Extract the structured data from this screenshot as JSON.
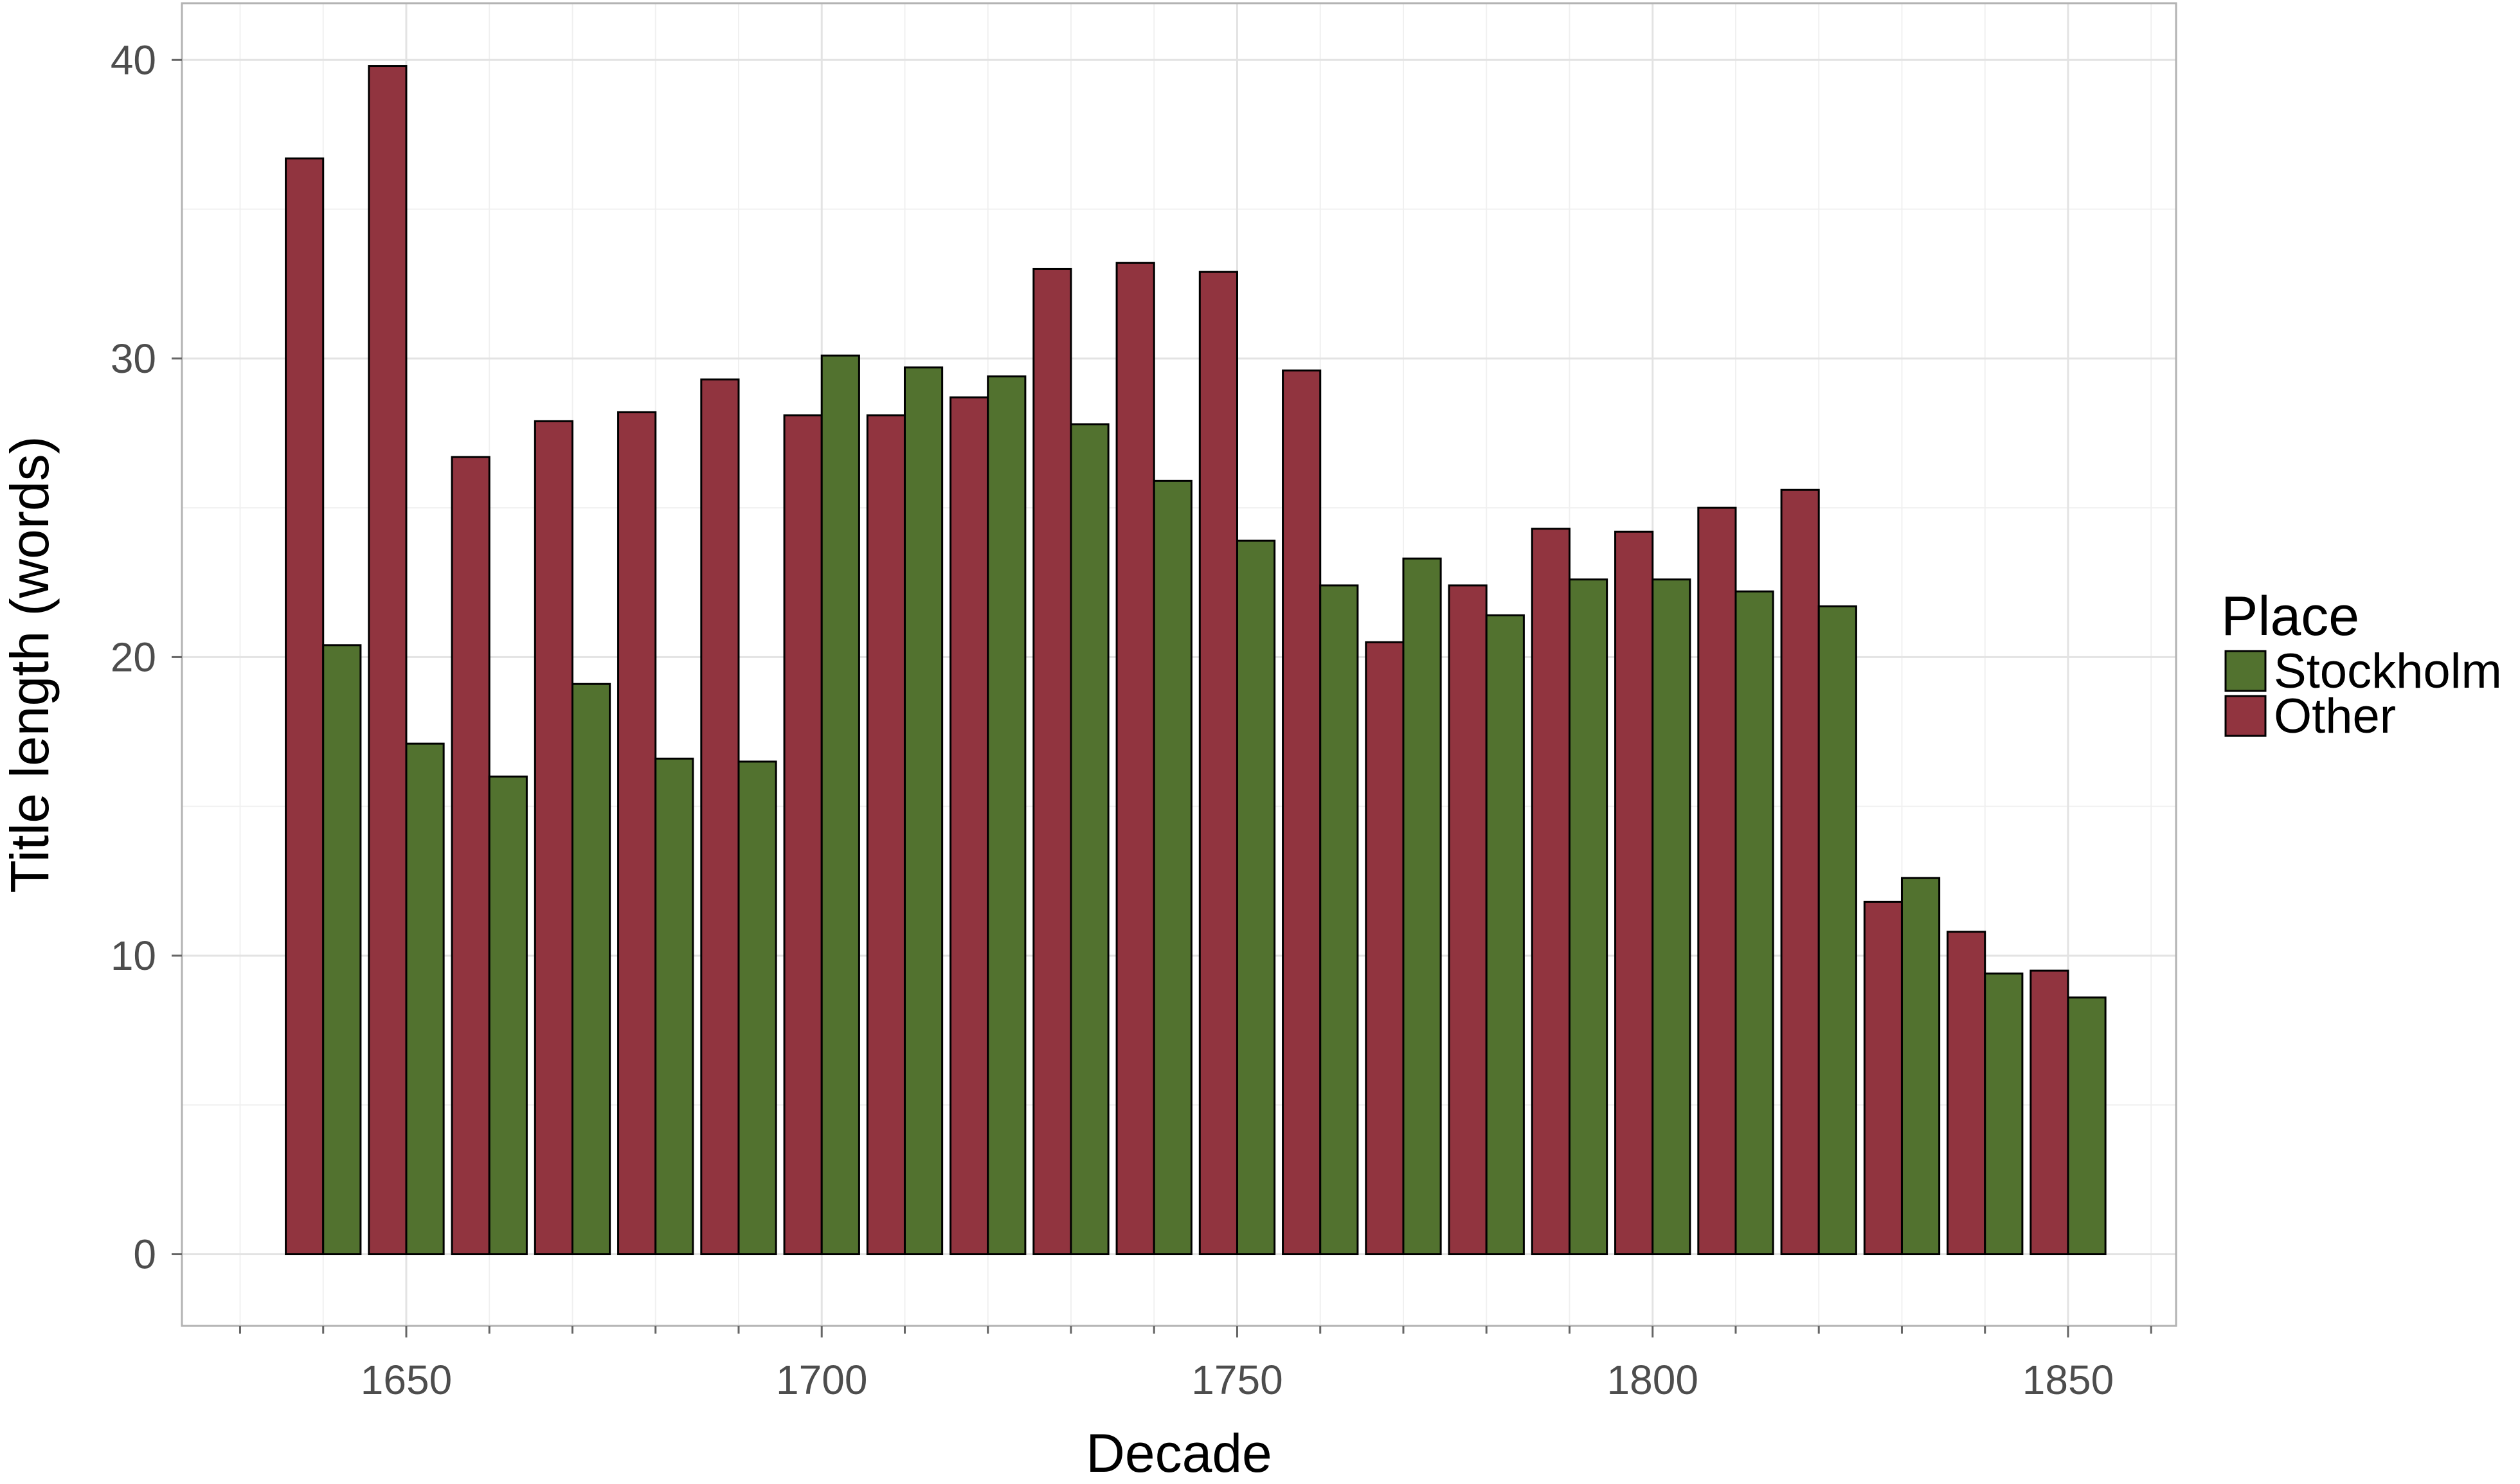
{
  "chart_data": {
    "type": "bar",
    "xlabel": "Decade",
    "ylabel": "Title length (words)",
    "xlim": [
      1623,
      1863
    ],
    "ylim": [
      -2.4,
      41.9
    ],
    "x_ticks": [
      1650,
      1700,
      1750,
      1800,
      1850
    ],
    "y_ticks": [
      0,
      10,
      20,
      30,
      40
    ],
    "grid": true,
    "legend": {
      "title": "Place",
      "position": "right"
    },
    "categories": [
      1640,
      1650,
      1660,
      1670,
      1680,
      1690,
      1700,
      1710,
      1720,
      1730,
      1740,
      1750,
      1760,
      1770,
      1780,
      1790,
      1800,
      1810,
      1820,
      1830,
      1840,
      1850
    ],
    "series": [
      {
        "name": "Stockholm",
        "color": "#52722f",
        "values": [
          20.4,
          17.1,
          16.0,
          19.1,
          16.6,
          16.5,
          30.1,
          29.7,
          29.4,
          27.8,
          25.9,
          23.9,
          22.4,
          23.3,
          21.4,
          22.6,
          22.6,
          22.2,
          21.7,
          12.6,
          9.4,
          8.6
        ]
      },
      {
        "name": "Other",
        "color": "#91343f",
        "values": [
          36.7,
          39.8,
          26.7,
          27.9,
          28.2,
          29.3,
          28.1,
          28.1,
          28.7,
          33.0,
          33.2,
          32.9,
          29.6,
          20.5,
          22.4,
          24.3,
          24.2,
          25.0,
          25.6,
          11.8,
          10.8,
          9.5
        ]
      }
    ]
  }
}
